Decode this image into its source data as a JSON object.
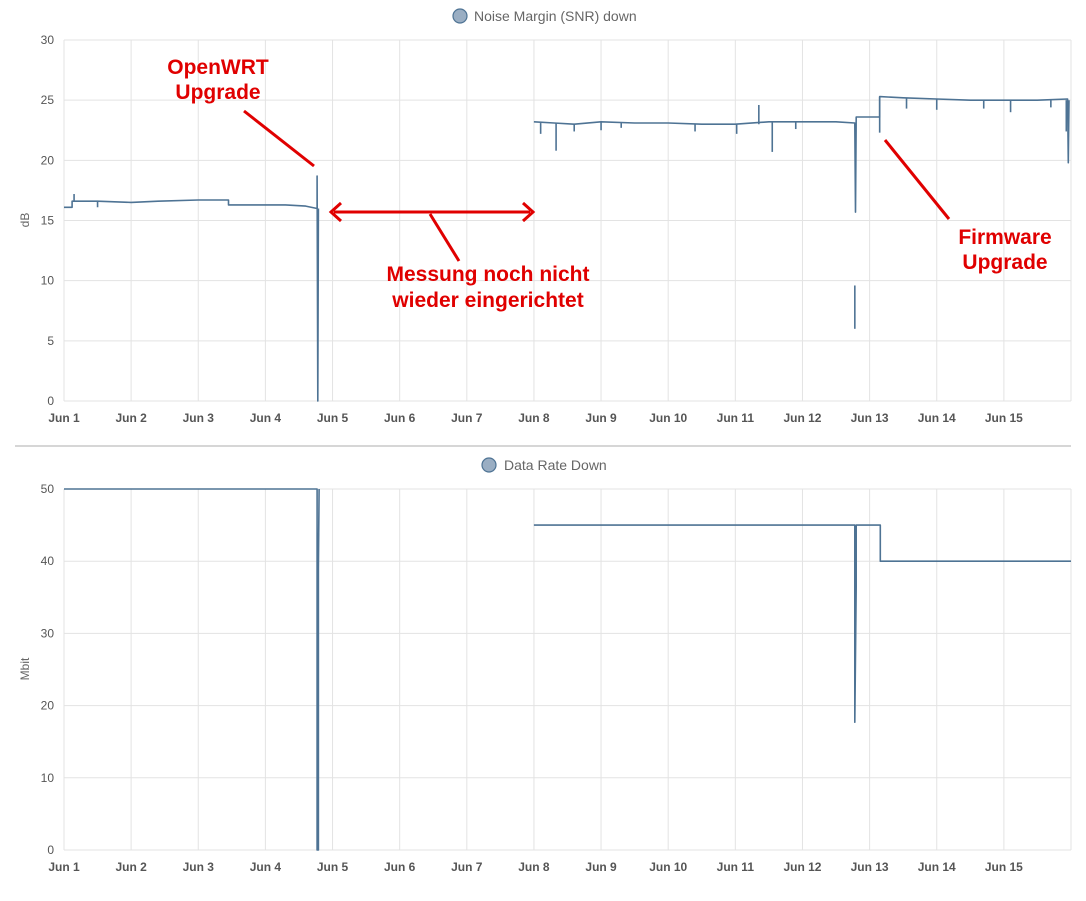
{
  "colors": {
    "series": "#4e7394",
    "legend_fill": "#9aaec3",
    "annotation": "#e00000"
  },
  "chart_data": [
    {
      "type": "line",
      "id": "snr",
      "title": "Noise Margin (SNR) down",
      "ylabel": "dB",
      "xlabel": "",
      "ylim": [
        0,
        30
      ],
      "yticks": [
        0,
        5,
        10,
        15,
        20,
        25,
        30
      ],
      "xlim": [
        1,
        16
      ],
      "xticks": [
        {
          "v": 1,
          "label": "Jun 1"
        },
        {
          "v": 2,
          "label": "Jun 2"
        },
        {
          "v": 3,
          "label": "Jun 3"
        },
        {
          "v": 4,
          "label": "Jun 4"
        },
        {
          "v": 5,
          "label": "Jun 5"
        },
        {
          "v": 6,
          "label": "Jun 6"
        },
        {
          "v": 7,
          "label": "Jun 7"
        },
        {
          "v": 8,
          "label": "Jun 8"
        },
        {
          "v": 9,
          "label": "Jun 9"
        },
        {
          "v": 10,
          "label": "Jun 10"
        },
        {
          "v": 11,
          "label": "Jun 11"
        },
        {
          "v": 12,
          "label": "Jun 12"
        },
        {
          "v": 13,
          "label": "Jun 13"
        },
        {
          "v": 14,
          "label": "Jun 14"
        },
        {
          "v": 15,
          "label": "Jun 15"
        }
      ],
      "grid": true,
      "legend": "top-center",
      "series": [
        {
          "name": "Noise Margin (SNR) down",
          "segments": [
            [
              [
                1.0,
                16.1
              ],
              [
                1.12,
                16.1
              ],
              [
                1.12,
                16.6
              ],
              [
                1.5,
                16.6
              ],
              [
                2.0,
                16.5
              ],
              [
                2.4,
                16.6
              ],
              [
                3.0,
                16.7
              ],
              [
                3.45,
                16.7
              ],
              [
                3.45,
                16.3
              ],
              [
                4.0,
                16.3
              ],
              [
                4.3,
                16.3
              ],
              [
                4.6,
                16.2
              ],
              [
                4.77,
                16.0
              ],
              [
                4.77,
                18.7
              ],
              [
                4.78,
                0
              ],
              [
                4.79,
                16.0
              ]
            ],
            [
              [
                8.0,
                23.2
              ],
              [
                8.3,
                23.1
              ],
              [
                8.6,
                23.0
              ],
              [
                9.0,
                23.2
              ],
              [
                9.5,
                23.1
              ],
              [
                10.0,
                23.1
              ],
              [
                10.5,
                23.0
              ],
              [
                11.0,
                23.0
              ],
              [
                11.5,
                23.2
              ],
              [
                12.0,
                23.2
              ],
              [
                12.5,
                23.2
              ],
              [
                12.78,
                23.1
              ],
              [
                12.79,
                15.7
              ],
              [
                12.8,
                23.6
              ],
              [
                13.15,
                23.6
              ],
              [
                13.15,
                25.3
              ],
              [
                13.5,
                25.2
              ],
              [
                14.0,
                25.1
              ],
              [
                14.5,
                25.0
              ],
              [
                15.0,
                25.0
              ],
              [
                15.5,
                25.0
              ],
              [
                15.95,
                25.1
              ],
              [
                15.96,
                19.8
              ],
              [
                15.97,
                25.0
              ]
            ]
          ],
          "spikes": [
            {
              "x": 1.15,
              "y0": 16.6,
              "y1": 17.2
            },
            {
              "x": 1.5,
              "y0": 16.6,
              "y1": 16.1
            },
            {
              "x": 8.1,
              "y0": 23.1,
              "y1": 22.2
            },
            {
              "x": 8.33,
              "y0": 23.1,
              "y1": 20.8
            },
            {
              "x": 8.6,
              "y0": 23.0,
              "y1": 22.4
            },
            {
              "x": 9.0,
              "y0": 23.2,
              "y1": 22.5
            },
            {
              "x": 9.3,
              "y0": 23.1,
              "y1": 22.7
            },
            {
              "x": 10.4,
              "y0": 23.0,
              "y1": 22.4
            },
            {
              "x": 11.02,
              "y0": 23.0,
              "y1": 22.2
            },
            {
              "x": 11.35,
              "y0": 23.0,
              "y1": 24.6
            },
            {
              "x": 11.55,
              "y0": 23.2,
              "y1": 20.7
            },
            {
              "x": 11.9,
              "y0": 23.2,
              "y1": 22.6
            },
            {
              "x": 12.78,
              "y0": 9.6,
              "y1": 6.0
            },
            {
              "x": 13.15,
              "y0": 25.3,
              "y1": 22.3
            },
            {
              "x": 13.55,
              "y0": 25.2,
              "y1": 24.3
            },
            {
              "x": 14.0,
              "y0": 25.1,
              "y1": 24.2
            },
            {
              "x": 14.7,
              "y0": 25.0,
              "y1": 24.3
            },
            {
              "x": 15.1,
              "y0": 25.0,
              "y1": 24.0
            },
            {
              "x": 15.7,
              "y0": 25.0,
              "y1": 24.4
            },
            {
              "x": 15.93,
              "y0": 25.0,
              "y1": 22.4
            }
          ]
        }
      ]
    },
    {
      "type": "line",
      "id": "rate",
      "title": "Data Rate Down",
      "ylabel": "Mbit",
      "xlabel": "",
      "ylim": [
        0,
        50
      ],
      "yticks": [
        0,
        10,
        20,
        30,
        40,
        50
      ],
      "xlim": [
        1,
        16
      ],
      "xticks": [
        {
          "v": 1,
          "label": "Jun 1"
        },
        {
          "v": 2,
          "label": "Jun 2"
        },
        {
          "v": 3,
          "label": "Jun 3"
        },
        {
          "v": 4,
          "label": "Jun 4"
        },
        {
          "v": 5,
          "label": "Jun 5"
        },
        {
          "v": 6,
          "label": "Jun 6"
        },
        {
          "v": 7,
          "label": "Jun 7"
        },
        {
          "v": 8,
          "label": "Jun 8"
        },
        {
          "v": 9,
          "label": "Jun 9"
        },
        {
          "v": 10,
          "label": "Jun 10"
        },
        {
          "v": 11,
          "label": "Jun 11"
        },
        {
          "v": 12,
          "label": "Jun 12"
        },
        {
          "v": 13,
          "label": "Jun 13"
        },
        {
          "v": 14,
          "label": "Jun 14"
        },
        {
          "v": 15,
          "label": "Jun 15"
        }
      ],
      "grid": true,
      "legend": "top-center",
      "series": [
        {
          "name": "Data Rate Down",
          "segments": [
            [
              [
                1.0,
                50
              ],
              [
                4.77,
                50
              ],
              [
                4.77,
                0
              ],
              [
                4.79,
                0
              ],
              [
                4.79,
                39
              ],
              [
                4.8,
                50
              ]
            ],
            [
              [
                8.0,
                45
              ],
              [
                12.78,
                45
              ],
              [
                12.78,
                17.7
              ],
              [
                12.8,
                36.5
              ],
              [
                12.8,
                45
              ],
              [
                13.16,
                45
              ],
              [
                13.16,
                40
              ],
              [
                16.0,
                40
              ]
            ]
          ],
          "spikes": []
        }
      ]
    }
  ],
  "annotations": {
    "openwrt": {
      "line1": "OpenWRT",
      "line2": "Upgrade"
    },
    "messung": {
      "line1": "Messung noch nicht",
      "line2": "wieder eingerichtet"
    },
    "firmware": {
      "line1": "Firmware",
      "line2": "Upgrade"
    }
  }
}
